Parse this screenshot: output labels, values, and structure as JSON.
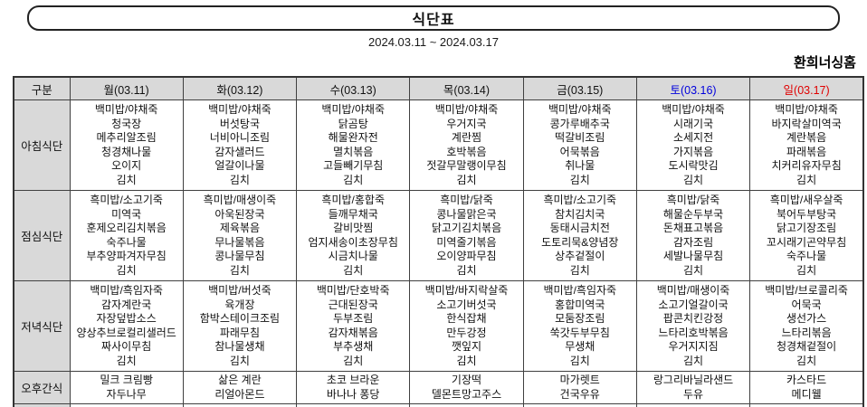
{
  "title": "식단표",
  "date_range": "2024.03.11 ~ 2024.03.17",
  "facility": "환희너싱홈",
  "colors": {
    "saturday": "#0000dd",
    "sunday": "#e00000",
    "header_bg": "#d9d9d9",
    "border": "#404040"
  },
  "table": {
    "corner_label": "구분",
    "columns": [
      {
        "label": "월(03.11)",
        "color": null
      },
      {
        "label": "화(03.12)",
        "color": null
      },
      {
        "label": "수(03.13)",
        "color": null
      },
      {
        "label": "목(03.14)",
        "color": null
      },
      {
        "label": "금(03.15)",
        "color": null
      },
      {
        "label": "토(03.16)",
        "color": "#0000dd"
      },
      {
        "label": "일(03.17)",
        "color": "#e00000"
      }
    ],
    "rows": [
      {
        "label": "아침식단",
        "type": "meal",
        "cells": [
          [
            "백미밥/야채죽",
            "청국장",
            "메추리알조림",
            "청경채나물",
            "오이지",
            "김치"
          ],
          [
            "백미밥/야채죽",
            "버섯탕국",
            "너비아니조림",
            "감자샐러드",
            "얼갈이나물",
            "김치"
          ],
          [
            "백미밥/야채죽",
            "닭곰탕",
            "해물완자전",
            "멸치볶음",
            "고들빼기무침",
            "김치"
          ],
          [
            "백미밥/야채죽",
            "우거지국",
            "계란찜",
            "호박볶음",
            "젓갈무말랭이무침",
            "김치"
          ],
          [
            "백미밥/야채죽",
            "콩가루배추국",
            "떡갈비조림",
            "어묵볶음",
            "취나물",
            "김치"
          ],
          [
            "백미밥/야채죽",
            "시래기국",
            "소세지전",
            "가지볶음",
            "도시락맛김",
            "김치"
          ],
          [
            "백미밥/야채죽",
            "바지락살미역국",
            "계란볶음",
            "파래볶음",
            "치커리유자무침",
            "김치"
          ]
        ]
      },
      {
        "label": "점심식단",
        "type": "meal",
        "cells": [
          [
            "흑미밥/소고기죽",
            "미역국",
            "훈제오리김치볶음",
            "숙주나물",
            "부추양파겨자무침",
            "김치"
          ],
          [
            "흑미밥/매생이죽",
            "아욱된장국",
            "제육볶음",
            "무나물볶음",
            "콩나물무침",
            "김치"
          ],
          [
            "흑미밥/홍합죽",
            "들깨무채국",
            "갈비맛찜",
            "엄지새송이초장무침",
            "시금치나물",
            "김치"
          ],
          [
            "흑미밥/닭죽",
            "콩나물맑은국",
            "닭고기김치볶음",
            "미역줄기볶음",
            "오이양파무침",
            "김치"
          ],
          [
            "흑미밥/소고기죽",
            "참치김치국",
            "동태시금치전",
            "도토리묵&양념장",
            "상추겉절이",
            "김치"
          ],
          [
            "흑미밥/닭죽",
            "해물순두부국",
            "돈채표고볶음",
            "감자조림",
            "세발나물무침",
            "김치"
          ],
          [
            "흑미밥/새우살죽",
            "북어두부탕국",
            "닭고기장조림",
            "꼬시래기곤약무침",
            "숙주나물",
            "김치"
          ]
        ]
      },
      {
        "label": "저녁식단",
        "type": "meal",
        "cells": [
          [
            "백미밥/흑임자죽",
            "감자계란국",
            "자장덮밥소스",
            "양상추브로컬리샐러드",
            "짜사이무침",
            "김치"
          ],
          [
            "백미밥/버섯죽",
            "육개장",
            "함박스테이크조림",
            "파래무침",
            "참나물생채",
            "김치"
          ],
          [
            "백미밥/단호박죽",
            "근대된장국",
            "두부조림",
            "감자채볶음",
            "부추생채",
            "김치"
          ],
          [
            "백미밥/바지락살죽",
            "소고기버섯국",
            "한식잡채",
            "만두강정",
            "깻잎지",
            "김치"
          ],
          [
            "백미밥/흑임자죽",
            "홍합미역국",
            "모둠장조림",
            "쑥갓두부무침",
            "무생채",
            "김치"
          ],
          [
            "백미밥/매생이죽",
            "소고기얼갈이국",
            "팝콘치킨강정",
            "느타리호박볶음",
            "우거지지짐",
            "김치"
          ],
          [
            "백미밥/브로콜리죽",
            "어묵국",
            "생선가스",
            "느타리볶음",
            "청경채겉절이",
            "김치"
          ]
        ]
      },
      {
        "label": "오후간식",
        "type": "snack",
        "cells": [
          [
            "밀크 크림빵",
            "자두나무"
          ],
          [
            "삶은 계란",
            "리얼아몬드"
          ],
          [
            "초코 브라운",
            "바나나 퐁당"
          ],
          [
            "기장떡",
            "델몬트망고주스"
          ],
          [
            "마가렛트",
            "건국우유"
          ],
          [
            "랑그리바닐라샌드",
            "두유"
          ],
          [
            "카스타드",
            "메디웰"
          ]
        ]
      }
    ]
  }
}
